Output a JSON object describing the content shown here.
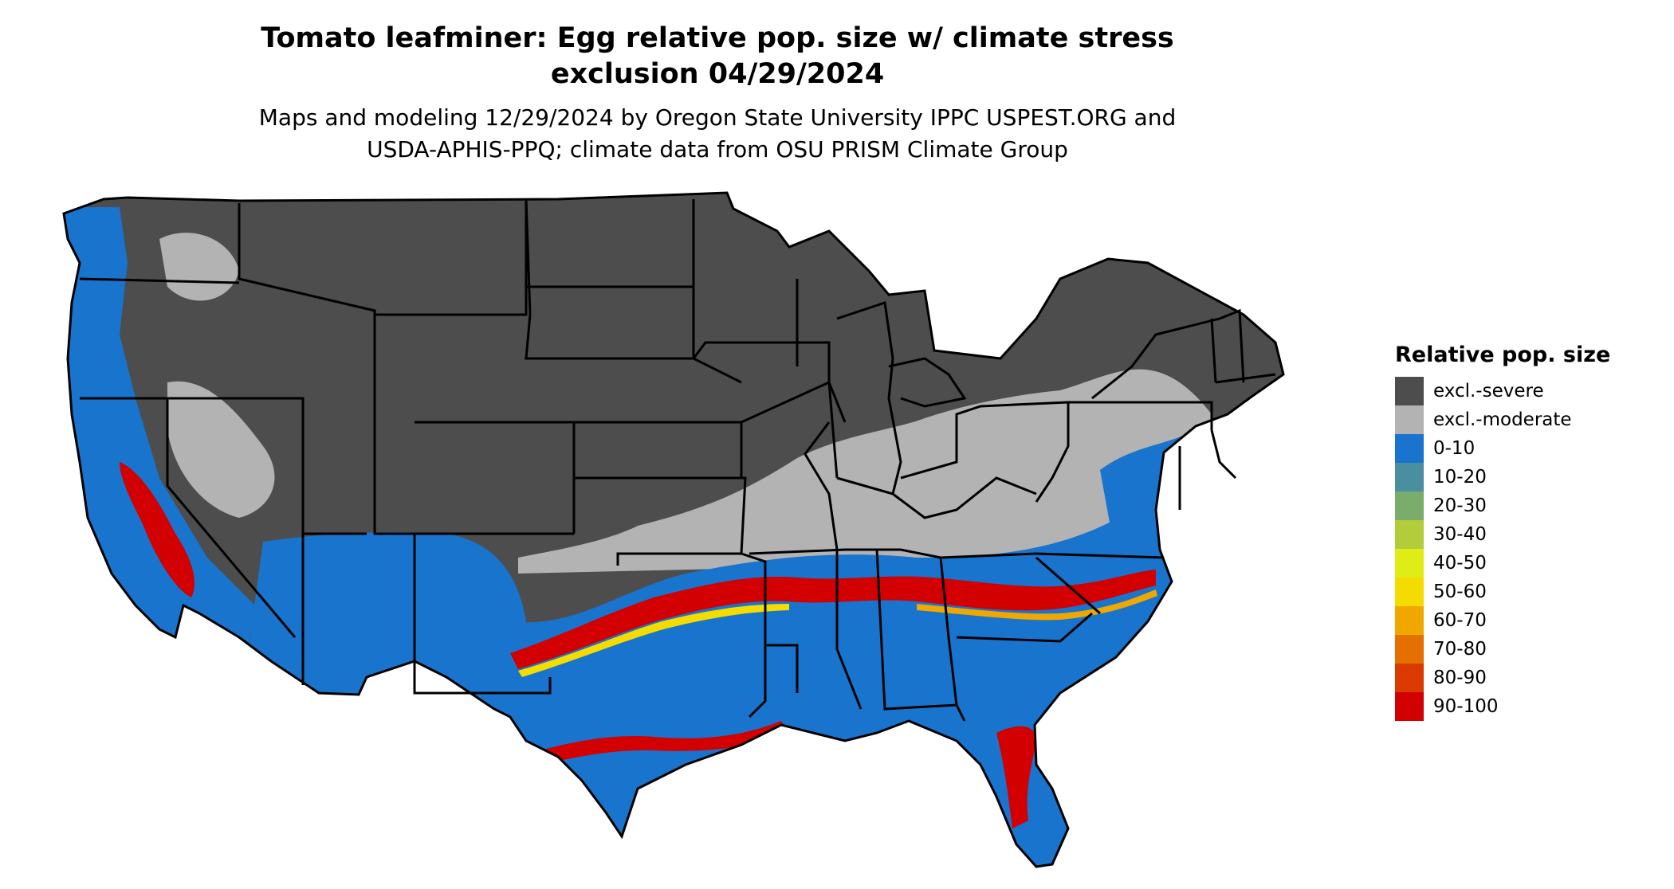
{
  "title_line1": "Tomato leafminer: Egg relative pop. size w/ climate stress",
  "title_line2": "exclusion 04/29/2024",
  "subtitle_line1": "Maps and modeling 12/29/2024 by Oregon State University IPPC USPEST.ORG and",
  "subtitle_line2": "USDA-APHIS-PPQ; climate data from OSU PRISM Climate Group",
  "colors": {
    "excl_severe": "#4d4d4d",
    "excl_moderate": "#b3b3b3",
    "low": "#1874cd",
    "high": "#d20000",
    "border": "#000000"
  },
  "legend": {
    "title": "Relative pop. size",
    "items": [
      {
        "label": "excl.-severe",
        "color": "#4d4d4d"
      },
      {
        "label": "excl.-moderate",
        "color": "#b3b3b3"
      },
      {
        "label": "0-10",
        "color": "#1874cd"
      },
      {
        "label": "10-20",
        "color": "#4a8fa0"
      },
      {
        "label": "20-30",
        "color": "#7aad6b"
      },
      {
        "label": "30-40",
        "color": "#b2cc3a"
      },
      {
        "label": "40-50",
        "color": "#e0ec16"
      },
      {
        "label": "50-60",
        "color": "#f5dc00"
      },
      {
        "label": "60-70",
        "color": "#f0a800"
      },
      {
        "label": "70-80",
        "color": "#e37000"
      },
      {
        "label": "80-90",
        "color": "#da3a00"
      },
      {
        "label": "90-100",
        "color": "#d20000"
      }
    ]
  }
}
